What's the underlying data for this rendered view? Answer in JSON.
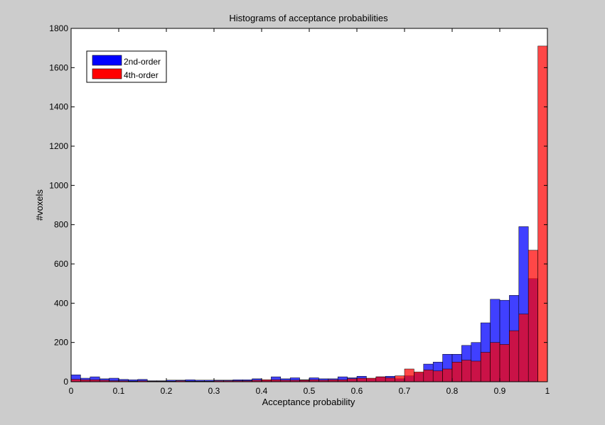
{
  "figure": {
    "background": "#cccccc",
    "axes_background": "#ffffff"
  },
  "chart_data": {
    "type": "bar",
    "title": "Histograms of  acceptance probabilities",
    "xlabel": "Acceptance probability",
    "ylabel": "#voxels",
    "xlim": [
      0,
      1
    ],
    "ylim": [
      0,
      1800
    ],
    "xticks": [
      0,
      0.1,
      0.2,
      0.3,
      0.4,
      0.5,
      0.6,
      0.7,
      0.8,
      0.9,
      1
    ],
    "xtick_labels": [
      "0",
      "0.1",
      "0.2",
      "0.3",
      "0.4",
      "0.5",
      "0.6",
      "0.7",
      "0.8",
      "0.9",
      "1"
    ],
    "yticks": [
      0,
      200,
      400,
      600,
      800,
      1000,
      1200,
      1400,
      1600,
      1800
    ],
    "ytick_labels": [
      "0",
      "200",
      "400",
      "600",
      "800",
      "1000",
      "1200",
      "1400",
      "1600",
      "1800"
    ],
    "grid": false,
    "legend_position": "top-left",
    "bin_width": 0.02,
    "bin_centers": [
      0.01,
      0.03,
      0.05,
      0.07,
      0.09,
      0.11,
      0.13,
      0.15,
      0.17,
      0.19,
      0.21,
      0.23,
      0.25,
      0.27,
      0.29,
      0.31,
      0.33,
      0.35,
      0.37,
      0.39,
      0.41,
      0.43,
      0.45,
      0.47,
      0.49,
      0.51,
      0.53,
      0.55,
      0.57,
      0.59,
      0.61,
      0.63,
      0.65,
      0.67,
      0.69,
      0.71,
      0.73,
      0.75,
      0.77,
      0.79,
      0.81,
      0.83,
      0.85,
      0.87,
      0.89,
      0.91,
      0.93,
      0.95,
      0.97,
      0.99
    ],
    "series": [
      {
        "name": "2nd-order",
        "color": "#0000ff",
        "values": [
          35,
          18,
          25,
          15,
          18,
          12,
          10,
          12,
          5,
          5,
          8,
          8,
          10,
          8,
          8,
          8,
          8,
          10,
          10,
          15,
          8,
          25,
          15,
          20,
          10,
          20,
          15,
          15,
          25,
          20,
          28,
          15,
          25,
          28,
          15,
          30,
          45,
          90,
          100,
          140,
          140,
          185,
          200,
          300,
          420,
          415,
          440,
          790,
          525,
          0
        ]
      },
      {
        "name": "4th-order",
        "color": "#ff0000",
        "values": [
          12,
          10,
          10,
          8,
          5,
          5,
          3,
          5,
          3,
          3,
          3,
          5,
          3,
          3,
          3,
          5,
          5,
          5,
          5,
          8,
          10,
          10,
          8,
          8,
          8,
          10,
          8,
          10,
          10,
          15,
          18,
          18,
          25,
          20,
          30,
          65,
          50,
          60,
          55,
          65,
          100,
          110,
          105,
          150,
          200,
          190,
          260,
          345,
          670,
          1710
        ]
      }
    ]
  }
}
